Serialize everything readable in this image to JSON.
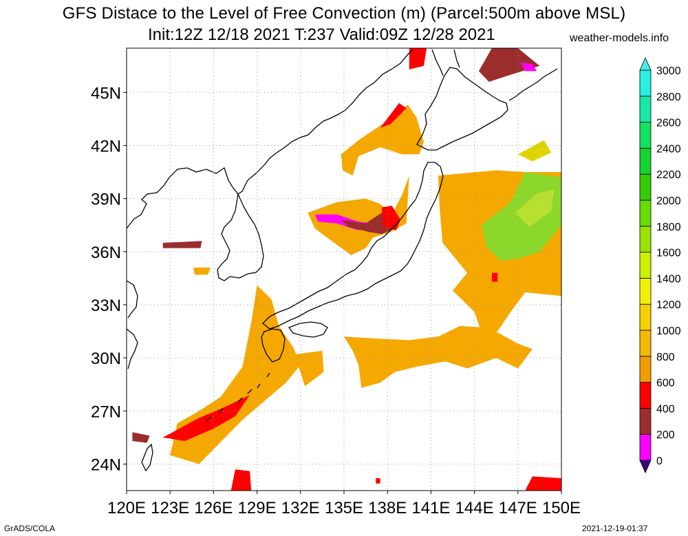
{
  "title": {
    "line1": "GFS Distace to the Level of Free Convection (m) (Parcel:500m above MSL)",
    "line2": "Init:12Z 12/18 2021 T:237 Valid:09Z 12/28 2021",
    "site": "weather-models.info"
  },
  "footer": {
    "left": "GrADS/COLA",
    "right": "2021-12-19-01:37"
  },
  "map": {
    "lon_range": [
      120,
      150
    ],
    "lat_range": [
      22.5,
      47.5
    ],
    "lon_labels": [
      "120E",
      "123E",
      "126E",
      "129E",
      "132E",
      "135E",
      "138E",
      "141E",
      "144E",
      "147E",
      "150E"
    ],
    "lat_labels": [
      "24N",
      "27N",
      "30N",
      "33N",
      "36N",
      "39N",
      "42N",
      "45N"
    ],
    "lon_ticks": [
      120,
      123,
      126,
      129,
      132,
      135,
      138,
      141,
      144,
      147,
      150
    ],
    "lat_ticks": [
      24,
      27,
      30,
      33,
      36,
      39,
      42,
      45
    ],
    "grid": true,
    "field_patches": [
      {
        "name": "kyushu-okinawa-band",
        "color": "#f5a800",
        "poly": [
          [
            125,
            24
          ],
          [
            128,
            26.5
          ],
          [
            131,
            28.6
          ],
          [
            132,
            29.6
          ],
          [
            131.5,
            30.6
          ],
          [
            130.5,
            31.8
          ],
          [
            130,
            33.3
          ],
          [
            129,
            34.1
          ],
          [
            128.6,
            32
          ],
          [
            128,
            29.5
          ],
          [
            126.5,
            27.8
          ],
          [
            125,
            27
          ],
          [
            123.5,
            26.3
          ],
          [
            123,
            24.5
          ]
        ]
      },
      {
        "name": "ryukyu-red-band",
        "color": "#ff0000",
        "poly": [
          [
            122.5,
            25.5
          ],
          [
            125,
            26.6
          ],
          [
            127,
            27.3
          ],
          [
            128.5,
            27.9
          ],
          [
            127.5,
            26.7
          ],
          [
            126,
            26
          ],
          [
            124,
            25.3
          ]
        ]
      },
      {
        "name": "taiwan-brown",
        "color": "#9b2d2d",
        "poly": [
          [
            120.4,
            25.8
          ],
          [
            121.6,
            25.6
          ],
          [
            121.4,
            25.2
          ],
          [
            120.4,
            25.3
          ]
        ]
      },
      {
        "name": "south-red",
        "color": "#ff0000",
        "poly": [
          [
            127.2,
            22.5
          ],
          [
            128.6,
            22.5
          ],
          [
            128.5,
            23.6
          ],
          [
            127.5,
            23.7
          ]
        ]
      },
      {
        "name": "korea-strait-orange",
        "color": "#f5a800",
        "poly": [
          [
            124.6,
            35.1
          ],
          [
            125.8,
            35.1
          ],
          [
            125.6,
            34.7
          ],
          [
            124.7,
            34.7
          ]
        ]
      },
      {
        "name": "yellow-sea-brown",
        "color": "#9b2d2d",
        "poly": [
          [
            122.5,
            36.5
          ],
          [
            125.2,
            36.6
          ],
          [
            125.1,
            36.2
          ],
          [
            122.5,
            36.2
          ]
        ]
      },
      {
        "name": "sea-of-japan-orange",
        "color": "#f5a800",
        "poly": [
          [
            132.5,
            38.2
          ],
          [
            134.5,
            38.8
          ],
          [
            136.5,
            39
          ],
          [
            137.5,
            38.7
          ],
          [
            138.3,
            38.1
          ],
          [
            139,
            39.2
          ],
          [
            139.5,
            40.3
          ],
          [
            139.3,
            37.6
          ],
          [
            138.2,
            37.1
          ],
          [
            137,
            36.8
          ],
          [
            136.5,
            36.2
          ],
          [
            135.5,
            35.8
          ],
          [
            134,
            36.7
          ],
          [
            133,
            37.3
          ]
        ]
      },
      {
        "name": "sea-of-japan-magenta",
        "color": "#ff00ff",
        "poly": [
          [
            133,
            38.1
          ],
          [
            134.5,
            38.1
          ],
          [
            136,
            37.7
          ],
          [
            137,
            37.6
          ],
          [
            137.5,
            37.9
          ],
          [
            136,
            37.2
          ],
          [
            134.5,
            37.6
          ],
          [
            133.2,
            37.7
          ]
        ]
      },
      {
        "name": "sea-of-japan-brown",
        "color": "#9b2d2d",
        "poly": [
          [
            134.8,
            37.8
          ],
          [
            136.5,
            37.6
          ],
          [
            137.6,
            38.2
          ],
          [
            138.5,
            37.3
          ],
          [
            137.6,
            37
          ],
          [
            136.8,
            37.1
          ],
          [
            135.3,
            37.4
          ]
        ]
      },
      {
        "name": "sea-of-japan-red",
        "color": "#ff0000",
        "poly": [
          [
            137.6,
            38.5
          ],
          [
            138.3,
            38.6
          ],
          [
            138.9,
            37.8
          ],
          [
            138.6,
            37.2
          ],
          [
            137.7,
            37.4
          ]
        ]
      },
      {
        "name": "hokkaido-west-orange",
        "color": "#f5a800",
        "poly": [
          [
            134.8,
            41.5
          ],
          [
            136,
            42.3
          ],
          [
            138,
            43.4
          ],
          [
            139.4,
            44.3
          ],
          [
            140,
            43.6
          ],
          [
            140.5,
            42.2
          ],
          [
            140.2,
            41.5
          ],
          [
            139,
            41.5
          ],
          [
            137.5,
            41.9
          ],
          [
            136,
            41.4
          ],
          [
            135.6,
            40.3
          ],
          [
            134.9,
            40.6
          ]
        ]
      },
      {
        "name": "hokkaido-west-red",
        "color": "#ff0000",
        "poly": [
          [
            137.5,
            43
          ],
          [
            138.8,
            44.4
          ],
          [
            139.3,
            44.1
          ],
          [
            138.2,
            43.2
          ]
        ]
      },
      {
        "name": "north-top-red",
        "color": "#ff0000",
        "poly": [
          [
            139.5,
            47.5
          ],
          [
            140.7,
            47.5
          ],
          [
            140.5,
            46.5
          ],
          [
            139.5,
            46.3
          ]
        ]
      },
      {
        "name": "north-top-brown",
        "color": "#9b2d2d",
        "poly": [
          [
            145.2,
            47.5
          ],
          [
            147,
            47.5
          ],
          [
            148.5,
            46.5
          ],
          [
            146.5,
            46
          ],
          [
            145,
            45.6
          ],
          [
            144.3,
            46.2
          ]
        ]
      },
      {
        "name": "north-top-magenta",
        "color": "#ff00ff",
        "poly": [
          [
            147.2,
            46.7
          ],
          [
            148,
            46.6
          ],
          [
            148.3,
            46.2
          ],
          [
            147.5,
            46.2
          ]
        ]
      },
      {
        "name": "pacific-large-orange",
        "color": "#f5a800",
        "poly": [
          [
            141.5,
            40.3
          ],
          [
            145.5,
            40.6
          ],
          [
            147.5,
            40.5
          ],
          [
            150,
            40.5
          ],
          [
            150,
            33.5
          ],
          [
            147.5,
            33.7
          ],
          [
            146.5,
            32.6
          ],
          [
            145.6,
            31.5
          ],
          [
            144.5,
            31.4
          ],
          [
            144,
            32.6
          ],
          [
            142.5,
            33.8
          ],
          [
            143.5,
            34.8
          ],
          [
            141.8,
            36.5
          ],
          [
            141.6,
            38.5
          ]
        ]
      },
      {
        "name": "pacific-green",
        "color": "#8bd82a",
        "poly": [
          [
            144.5,
            37.5
          ],
          [
            146.5,
            38.8
          ],
          [
            147.5,
            40.5
          ],
          [
            150,
            40.2
          ],
          [
            150,
            37.5
          ],
          [
            148.5,
            36
          ],
          [
            147,
            35.6
          ],
          [
            145.8,
            35.5
          ],
          [
            144.8,
            36.3
          ]
        ]
      },
      {
        "name": "pacific-light-green",
        "color": "#b8e030",
        "poly": [
          [
            146.8,
            38.2
          ],
          [
            148.3,
            39.3
          ],
          [
            149.5,
            39.5
          ],
          [
            149.3,
            38.3
          ],
          [
            147.8,
            37.4
          ]
        ]
      },
      {
        "name": "pacific-yellow-northeast",
        "color": "#e0d400",
        "poly": [
          [
            147,
            41.5
          ],
          [
            148.8,
            42.3
          ],
          [
            149.3,
            41.6
          ],
          [
            148,
            41.1
          ]
        ]
      },
      {
        "name": "pacific-red-spot",
        "color": "#ff0000",
        "poly": [
          [
            145.2,
            34.8
          ],
          [
            145.6,
            34.8
          ],
          [
            145.6,
            34.3
          ],
          [
            145.2,
            34.3
          ]
        ]
      },
      {
        "name": "subtropical-orange-band",
        "color": "#f5a800",
        "poly": [
          [
            135,
            31.2
          ],
          [
            137,
            31.1
          ],
          [
            139.5,
            31
          ],
          [
            141.5,
            31.2
          ],
          [
            143,
            31.8
          ],
          [
            145,
            31.7
          ],
          [
            147,
            30.8
          ],
          [
            148,
            30.5
          ],
          [
            147,
            29.4
          ],
          [
            145.5,
            30
          ],
          [
            143.5,
            29.4
          ],
          [
            142,
            29.8
          ],
          [
            140,
            29.5
          ],
          [
            138.5,
            29.2
          ],
          [
            137.5,
            28.6
          ],
          [
            136.2,
            28.3
          ],
          [
            136,
            29.6
          ],
          [
            135.6,
            30.4
          ]
        ]
      },
      {
        "name": "central-south-orange",
        "color": "#f5a800",
        "poly": [
          [
            131.6,
            30.2
          ],
          [
            133.5,
            30.4
          ],
          [
            133.6,
            29.2
          ],
          [
            132.3,
            28.4
          ]
        ]
      },
      {
        "name": "far-south-red",
        "color": "#ff0000",
        "poly": [
          [
            147.5,
            22.5
          ],
          [
            150,
            22.5
          ],
          [
            150,
            23.2
          ],
          [
            148,
            23.3
          ]
        ]
      },
      {
        "name": "mid-south-red-specks",
        "color": "#ff0000",
        "poly": [
          [
            137.2,
            23.2
          ],
          [
            137.5,
            23.2
          ],
          [
            137.5,
            22.9
          ],
          [
            137.2,
            22.9
          ]
        ]
      }
    ],
    "legend": {
      "ticks": [
        0,
        200,
        400,
        600,
        800,
        1000,
        1200,
        1400,
        1600,
        1800,
        2000,
        2200,
        2400,
        2600,
        2800,
        3000
      ],
      "labels": [
        "0",
        "200",
        "400",
        "600",
        "800",
        "1000",
        "1200",
        "1400",
        "1600",
        "1800",
        "2000",
        "2200",
        "2400",
        "2600",
        "2800",
        "3000"
      ],
      "colors": [
        "#4b0082",
        "#ff00ff",
        "#9b2d2d",
        "#ff0000",
        "#f39c00",
        "#f5b800",
        "#f7d000",
        "#f0f000",
        "#ccf000",
        "#98e400",
        "#66dc00",
        "#33cc00",
        "#14d430",
        "#14e060",
        "#18e8a8",
        "#28f0e0"
      ],
      "under_color": "#3c007c",
      "over_color": "#40f0e8"
    }
  }
}
